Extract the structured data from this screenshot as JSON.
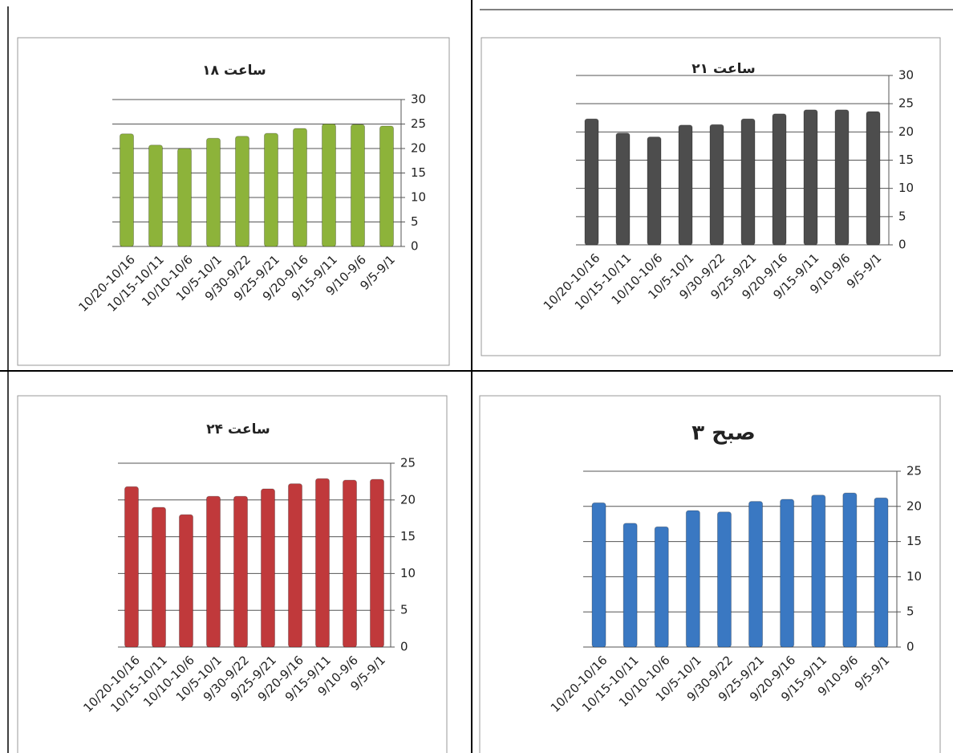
{
  "chart_data": [
    {
      "type": "bar",
      "title": "ساعت ۱۸",
      "color": "#8db33a",
      "categories": [
        "10/20-10/16",
        "10/15-10/11",
        "10/10-10/6",
        "10/5-10/1",
        "9/30-9/22",
        "9/25-9/21",
        "9/20-9/16",
        "9/15-9/11",
        "9/10-9/6",
        "9/5-9/1"
      ],
      "values": [
        23,
        20.7,
        20,
        22.1,
        22.5,
        23.1,
        24.1,
        25,
        24.9,
        24.6
      ],
      "ylim": [
        0,
        30
      ],
      "yticks": [
        0,
        5,
        10,
        15,
        20,
        25,
        30
      ],
      "grid": true
    },
    {
      "type": "bar",
      "title": "ساعت ۲۱",
      "color": "#4d4d4d",
      "categories": [
        "10/20-10/16",
        "10/15-10/11",
        "10/10-10/6",
        "10/5-10/1",
        "9/30-9/22",
        "9/25-9/21",
        "9/20-9/16",
        "9/15-9/11",
        "9/10-9/6",
        "9/5-9/1"
      ],
      "values": [
        22.3,
        19.8,
        19.1,
        21.2,
        21.3,
        22.3,
        23.2,
        23.9,
        23.9,
        23.6
      ],
      "ylim": [
        0,
        30
      ],
      "yticks": [
        0,
        5,
        10,
        15,
        20,
        25,
        30
      ],
      "grid": true
    },
    {
      "type": "bar",
      "title": "ساعت ۲۴",
      "color": "#c0393b",
      "categories": [
        "10/20-10/16",
        "10/15-10/11",
        "10/10-10/6",
        "10/5-10/1",
        "9/30-9/22",
        "9/25-9/21",
        "9/20-9/16",
        "9/15-9/11",
        "9/10-9/6",
        "9/5-9/1"
      ],
      "values": [
        21.8,
        19,
        18,
        20.5,
        20.5,
        21.5,
        22.2,
        22.9,
        22.7,
        22.8
      ],
      "ylim": [
        0,
        25
      ],
      "yticks": [
        0,
        5,
        10,
        15,
        20,
        25
      ],
      "grid": true
    },
    {
      "type": "bar",
      "title": "۳ صبح",
      "color": "#3a78c2",
      "categories": [
        "10/20-10/16",
        "10/15-10/11",
        "10/10-10/6",
        "10/5-10/1",
        "9/30-9/22",
        "9/25-9/21",
        "9/20-9/16",
        "9/15-9/11",
        "9/10-9/6",
        "9/5-9/1"
      ],
      "values": [
        20.5,
        17.6,
        17.1,
        19.4,
        19.2,
        20.7,
        21,
        21.6,
        21.9,
        21.2
      ],
      "ylim": [
        0,
        25
      ],
      "yticks": [
        0,
        5,
        10,
        15,
        20,
        25
      ],
      "grid": true
    }
  ]
}
